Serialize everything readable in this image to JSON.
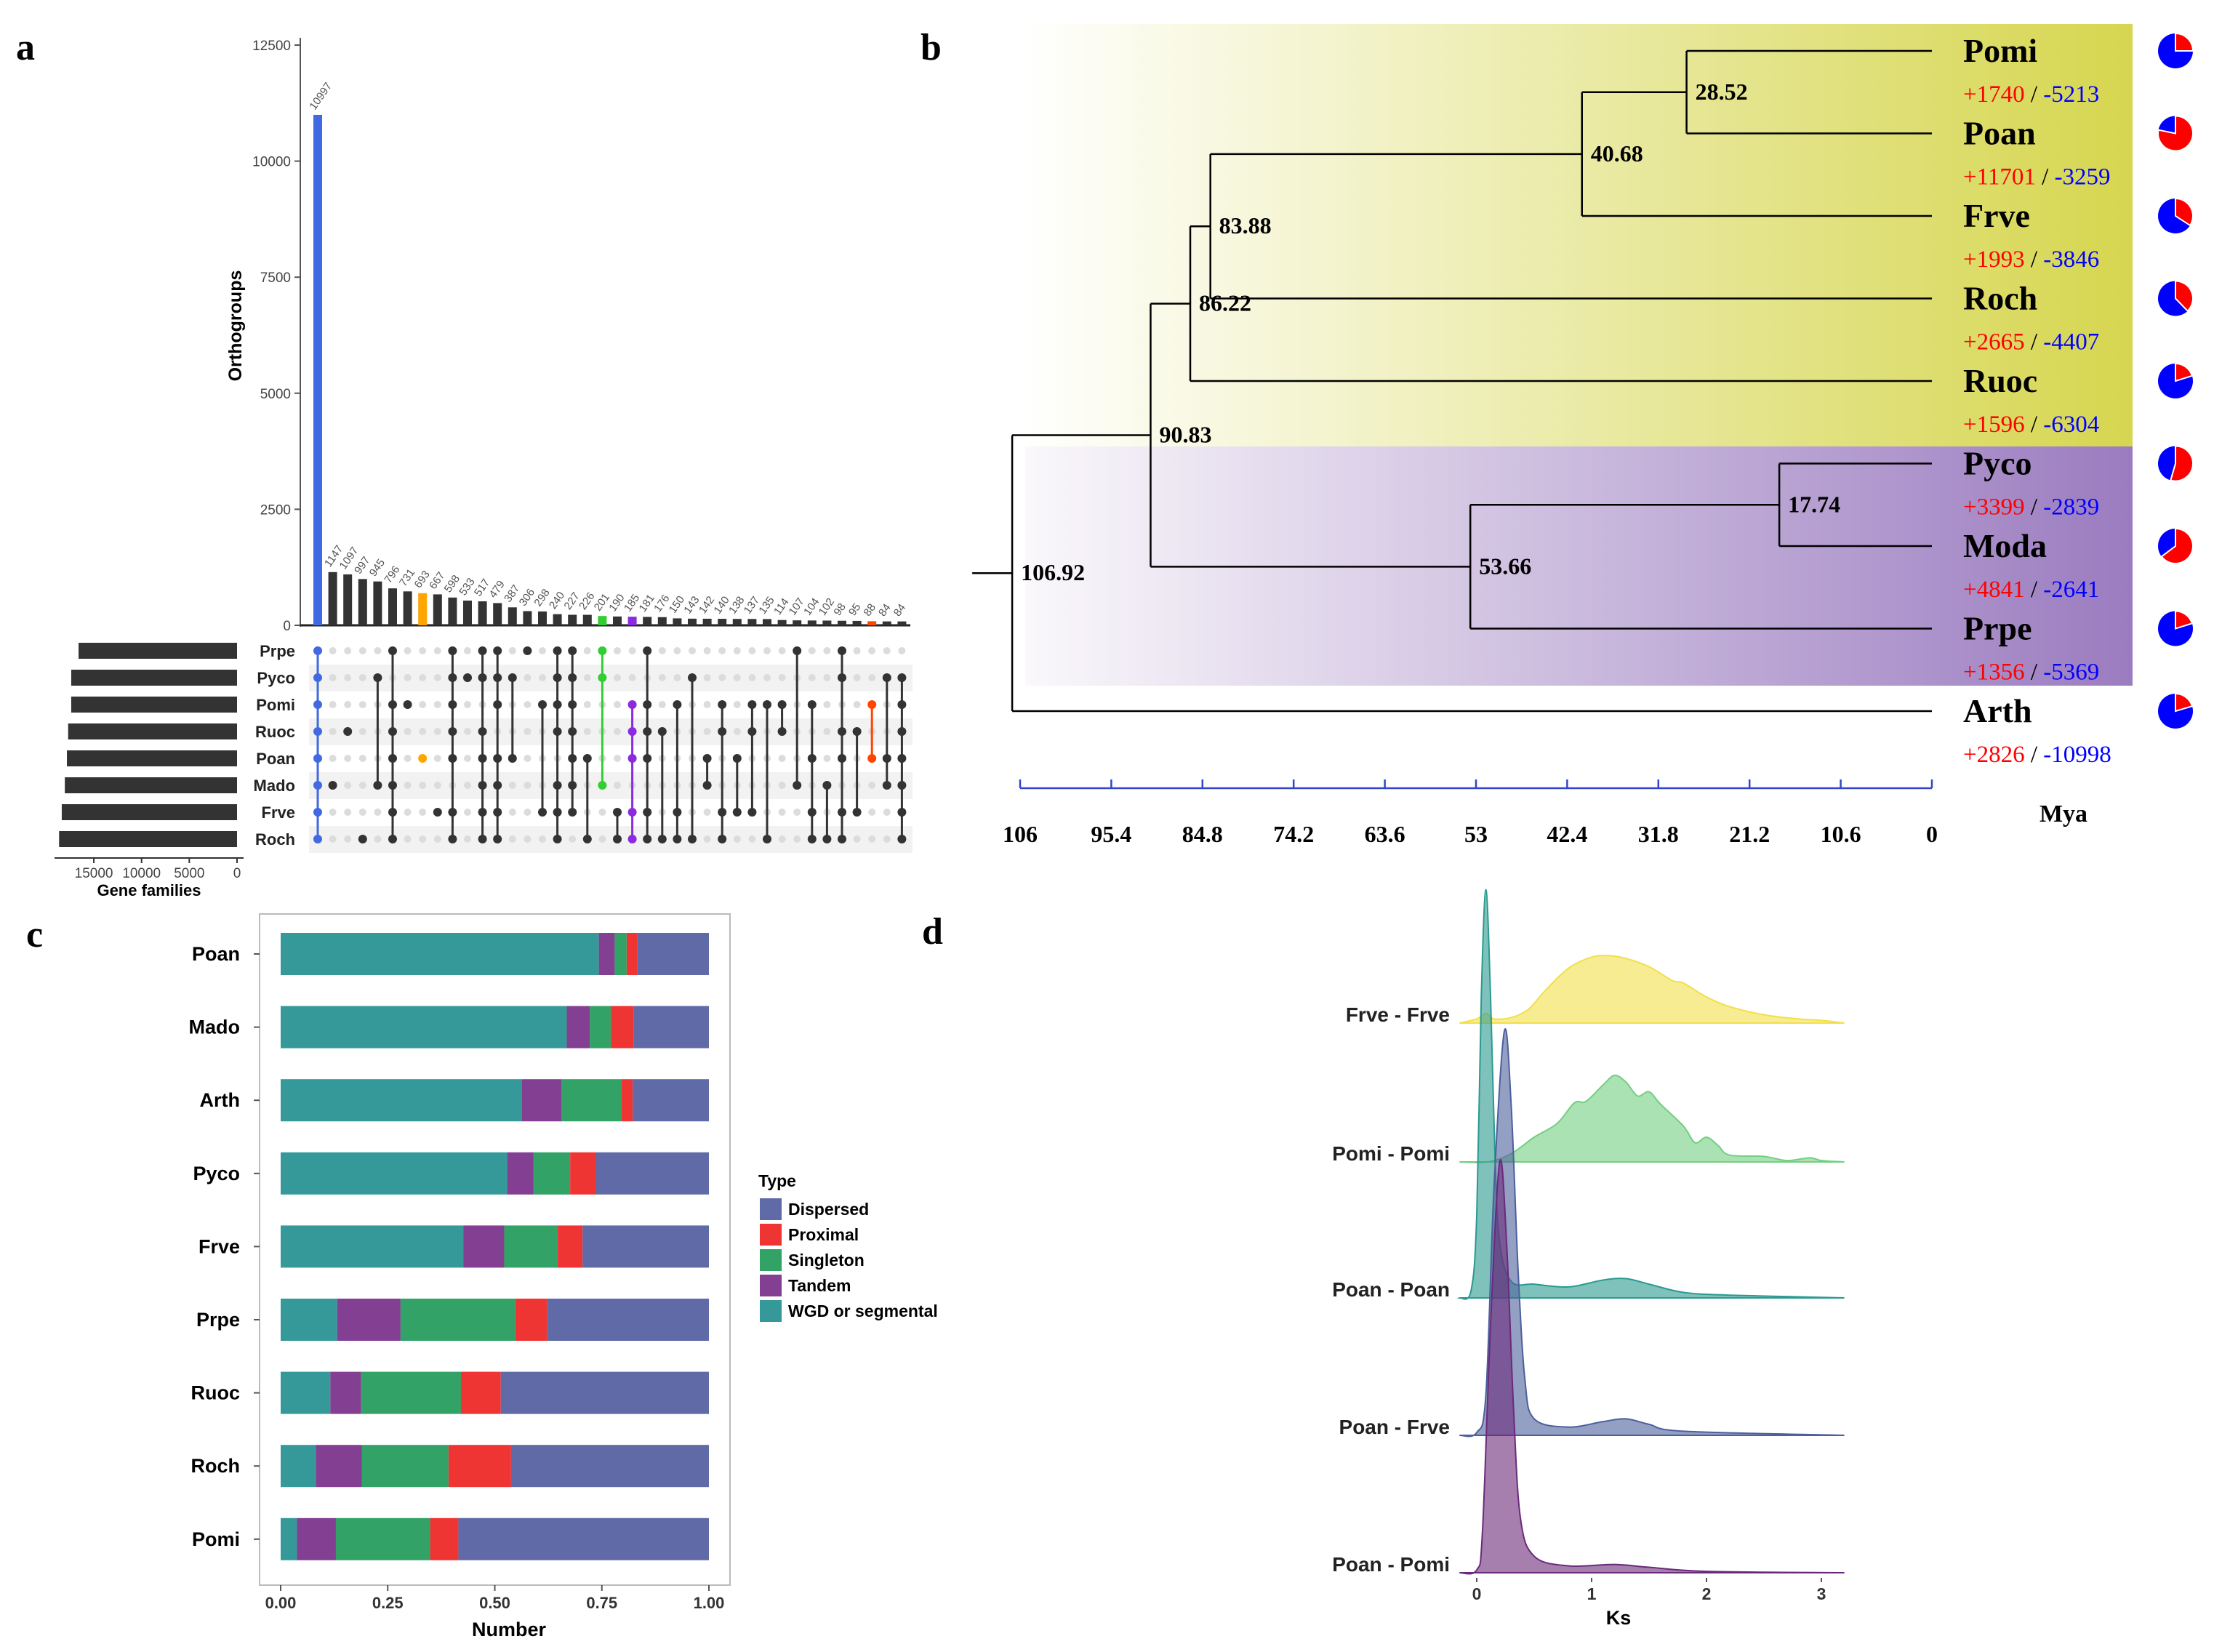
{
  "panel_labels": {
    "a": "a",
    "b": "b",
    "c": "c",
    "d": "d"
  },
  "chart_data": [
    {
      "panel": "a",
      "type": "bar",
      "ylabel": "Orthogroups",
      "ylim": [
        0,
        12500
      ],
      "yticks": [
        0,
        2500,
        5000,
        7500,
        10000,
        12500
      ],
      "values": [
        10997,
        1147,
        1097,
        997,
        945,
        796,
        731,
        693,
        667,
        598,
        533,
        517,
        479,
        387,
        306,
        298,
        240,
        227,
        226,
        201,
        190,
        185,
        181,
        176,
        150,
        143,
        142,
        140,
        138,
        137,
        135,
        114,
        107,
        104,
        102,
        98,
        95,
        88,
        84,
        84
      ],
      "default_color": "#333333",
      "highlights": [
        {
          "index": 0,
          "color": "#4169e1"
        },
        {
          "index": 7,
          "color": "#ffa500"
        },
        {
          "index": 19,
          "color": "#32cd32"
        },
        {
          "index": 21,
          "color": "#8a2be2"
        },
        {
          "index": 37,
          "color": "#ff4500"
        }
      ],
      "sets": [
        "Prpe",
        "Pyco",
        "Pomi",
        "Ruoc",
        "Poan",
        "Mado",
        "Frve",
        "Roch"
      ],
      "set_sizes": [
        16600,
        17370,
        17370,
        17690,
        17820,
        18040,
        18360,
        18640
      ],
      "set_size_xlabel": "Gene families",
      "set_size_ticks": [
        15000,
        10000,
        5000,
        0
      ],
      "intersections": [
        [
          0,
          1,
          2,
          3,
          4,
          5,
          6,
          7
        ],
        [
          5
        ],
        [
          3
        ],
        [
          7
        ],
        [
          1,
          5
        ],
        [
          0,
          2,
          3,
          4,
          5,
          6,
          7
        ],
        [
          2
        ],
        [
          4
        ],
        [
          6
        ],
        [
          0,
          1,
          2,
          3,
          4,
          6,
          7
        ],
        [
          1
        ],
        [
          0,
          1,
          3,
          4,
          5,
          6,
          7
        ],
        [
          0,
          1,
          2,
          4,
          5,
          6,
          7
        ],
        [
          1,
          4
        ],
        [
          0
        ],
        [
          2,
          6
        ],
        [
          0,
          1,
          2,
          3,
          5,
          6,
          7
        ],
        [
          0,
          1,
          2,
          3,
          4,
          5,
          6
        ],
        [
          4,
          7
        ],
        [
          0,
          1,
          5
        ],
        [
          6,
          7
        ],
        [
          2,
          3,
          4,
          6,
          7
        ],
        [
          0,
          2,
          3,
          4,
          6,
          7
        ],
        [
          3,
          7
        ],
        [
          2,
          6,
          7
        ],
        [
          1,
          7
        ],
        [
          4,
          5
        ],
        [
          2,
          3,
          6,
          7
        ],
        [
          4,
          6
        ],
        [
          2,
          3,
          6
        ],
        [
          2,
          7
        ],
        [
          2,
          3
        ],
        [
          0,
          5
        ],
        [
          2,
          4,
          6,
          7
        ],
        [
          5,
          7
        ],
        [
          0,
          1,
          3,
          4,
          6,
          7
        ],
        [
          3,
          6
        ],
        [
          2,
          4
        ],
        [
          1,
          4,
          5
        ],
        [
          1,
          2,
          3,
          4,
          5,
          6,
          7
        ]
      ]
    },
    {
      "panel": "c",
      "type": "bar",
      "orientation": "horizontal-stacked",
      "categories": [
        "Poan",
        "Mado",
        "Arth",
        "Pyco",
        "Frve",
        "Prpe",
        "Ruoc",
        "Roch",
        "Pomi"
      ],
      "series": [
        {
          "name": "WGD or segmental",
          "color": "#35999a",
          "values": [
            0.743,
            0.668,
            0.563,
            0.529,
            0.427,
            0.132,
            0.116,
            0.082,
            0.038
          ]
        },
        {
          "name": "Tandem",
          "color": "#833f92",
          "values": [
            0.037,
            0.054,
            0.093,
            0.061,
            0.095,
            0.148,
            0.072,
            0.108,
            0.091
          ]
        },
        {
          "name": "Singleton",
          "color": "#32a266",
          "values": [
            0.028,
            0.049,
            0.139,
            0.086,
            0.125,
            0.268,
            0.233,
            0.202,
            0.22
          ]
        },
        {
          "name": "Proximal",
          "color": "#ef3434",
          "values": [
            0.025,
            0.053,
            0.027,
            0.06,
            0.058,
            0.074,
            0.093,
            0.146,
            0.066
          ]
        },
        {
          "name": "Dispersed",
          "color": "#5f6aa6",
          "values": [
            0.167,
            0.176,
            0.178,
            0.264,
            0.295,
            0.378,
            0.486,
            0.462,
            0.585
          ]
        }
      ],
      "legend_title": "Type",
      "legend_order": [
        "Dispersed",
        "Proximal",
        "Singleton",
        "Tandem",
        "WGD or segmental"
      ],
      "legend_placement": "right",
      "xlabel": "Number",
      "xlim": [
        0,
        1
      ],
      "xticks": [
        "0.00",
        "0.25",
        "0.50",
        "0.75",
        "1.00"
      ]
    },
    {
      "panel": "d",
      "type": "area",
      "style": "ridgeline",
      "xlabel": "Ks",
      "xlim": [
        -0.15,
        3.2
      ],
      "xticks": [
        "0",
        "1",
        "2",
        "3"
      ],
      "series": [
        {
          "name": "Frve - Frve",
          "color": "#f2df4a",
          "points": [
            [
              -0.15,
              0
            ],
            [
              0,
              0.03
            ],
            [
              0.08,
              0.07
            ],
            [
              0.15,
              0.03
            ],
            [
              0.3,
              0.04
            ],
            [
              0.45,
              0.1
            ],
            [
              0.6,
              0.24
            ],
            [
              0.8,
              0.4
            ],
            [
              1.0,
              0.48
            ],
            [
              1.15,
              0.49
            ],
            [
              1.3,
              0.47
            ],
            [
              1.5,
              0.41
            ],
            [
              1.7,
              0.31
            ],
            [
              1.8,
              0.29
            ],
            [
              2.0,
              0.19
            ],
            [
              2.2,
              0.12
            ],
            [
              2.5,
              0.06
            ],
            [
              2.8,
              0.03
            ],
            [
              3.0,
              0.02
            ],
            [
              3.2,
              0
            ]
          ]
        },
        {
          "name": "Pomi - Pomi",
          "color": "#72cf80",
          "points": [
            [
              -0.15,
              0
            ],
            [
              0.1,
              0
            ],
            [
              0.3,
              0.06
            ],
            [
              0.5,
              0.18
            ],
            [
              0.7,
              0.28
            ],
            [
              0.85,
              0.43
            ],
            [
              0.95,
              0.44
            ],
            [
              1.1,
              0.56
            ],
            [
              1.2,
              0.63
            ],
            [
              1.3,
              0.58
            ],
            [
              1.4,
              0.48
            ],
            [
              1.5,
              0.51
            ],
            [
              1.6,
              0.42
            ],
            [
              1.8,
              0.26
            ],
            [
              1.9,
              0.14
            ],
            [
              2.0,
              0.18
            ],
            [
              2.1,
              0.12
            ],
            [
              2.2,
              0.05
            ],
            [
              2.5,
              0.04
            ],
            [
              2.7,
              0.01
            ],
            [
              2.9,
              0.03
            ],
            [
              3.0,
              0.01
            ],
            [
              3.2,
              0
            ]
          ]
        },
        {
          "name": "Poan - Poan",
          "color": "#2a9a8f",
          "points": [
            [
              -0.15,
              0
            ],
            [
              -0.05,
              0.05
            ],
            [
              0,
              0.6
            ],
            [
              0.04,
              2.2
            ],
            [
              0.08,
              2.97
            ],
            [
              0.12,
              2.2
            ],
            [
              0.16,
              1.0
            ],
            [
              0.2,
              0.4
            ],
            [
              0.3,
              0.12
            ],
            [
              0.5,
              0.1
            ],
            [
              0.8,
              0.08
            ],
            [
              1.1,
              0.13
            ],
            [
              1.3,
              0.14
            ],
            [
              1.5,
              0.1
            ],
            [
              1.8,
              0.04
            ],
            [
              2.2,
              0.02
            ],
            [
              3.2,
              0
            ]
          ]
        },
        {
          "name": "Poan - Frve",
          "color": "#4d5f9c",
          "points": [
            [
              -0.15,
              0
            ],
            [
              0,
              0.02
            ],
            [
              0.08,
              0.3
            ],
            [
              0.15,
              1.8
            ],
            [
              0.24,
              2.94
            ],
            [
              0.3,
              2.4
            ],
            [
              0.36,
              1.2
            ],
            [
              0.42,
              0.4
            ],
            [
              0.5,
              0.12
            ],
            [
              0.8,
              0.06
            ],
            [
              1.1,
              0.1
            ],
            [
              1.3,
              0.12
            ],
            [
              1.5,
              0.08
            ],
            [
              1.8,
              0.03
            ],
            [
              3.2,
              0
            ]
          ]
        },
        {
          "name": "Poan - Pomi",
          "color": "#6a2a7a",
          "points": [
            [
              -0.15,
              0
            ],
            [
              0,
              0.02
            ],
            [
              0.05,
              0.3
            ],
            [
              0.12,
              1.8
            ],
            [
              0.2,
              2.99
            ],
            [
              0.26,
              2.4
            ],
            [
              0.32,
              1.2
            ],
            [
              0.38,
              0.4
            ],
            [
              0.5,
              0.12
            ],
            [
              0.8,
              0.05
            ],
            [
              1.2,
              0.06
            ],
            [
              1.5,
              0.04
            ],
            [
              2.0,
              0.01
            ],
            [
              3.2,
              0
            ]
          ]
        }
      ]
    }
  ],
  "phylogeny": {
    "panel": "b",
    "axis_ticks": [
      "106",
      "95.4",
      "84.8",
      "74.2",
      "63.6",
      "53",
      "42.4",
      "31.8",
      "21.2",
      "10.6",
      "0"
    ],
    "axis_unit": "Mya",
    "axis_range": [
      106,
      0
    ],
    "gain_color": "#ff0000",
    "loss_color": "#0000ff",
    "clade_colors": {
      "upper": "#d6d650",
      "lower": "#9b7cc0"
    },
    "tips": [
      {
        "name": "Pomi",
        "gain": "+1740",
        "loss": "-5213",
        "clade": "upper"
      },
      {
        "name": "Poan",
        "gain": "+11701",
        "loss": "-3259",
        "clade": "upper"
      },
      {
        "name": "Frve",
        "gain": "+1993",
        "loss": "-3846",
        "clade": "upper"
      },
      {
        "name": "Roch",
        "gain": "+2665",
        "loss": "-4407",
        "clade": "upper"
      },
      {
        "name": "Ruoc",
        "gain": "+1596",
        "loss": "-6304",
        "clade": "upper"
      },
      {
        "name": "Pyco",
        "gain": "+3399",
        "loss": "-2839",
        "clade": "lower"
      },
      {
        "name": "Moda",
        "gain": "+4841",
        "loss": "-2641",
        "clade": "lower"
      },
      {
        "name": "Prpe",
        "gain": "+1356",
        "loss": "-5369",
        "clade": "lower"
      },
      {
        "name": "Arth",
        "gain": "+2826",
        "loss": "-10998",
        "clade": "none"
      }
    ],
    "tree": {
      "age": "106.92",
      "children": [
        {
          "age": "90.83",
          "children": [
            {
              "age": "86.22",
              "children": [
                {
                  "age": "83.88",
                  "children": [
                    {
                      "age": "40.68",
                      "children": [
                        {
                          "age": "28.52",
                          "children": [
                            "Pomi",
                            "Poan"
                          ]
                        },
                        "Frve"
                      ]
                    },
                    "Roch"
                  ]
                },
                "Ruoc"
              ]
            },
            {
              "age": "53.66",
              "children": [
                {
                  "age": "17.74",
                  "children": [
                    "Pyco",
                    "Moda"
                  ]
                },
                "Prpe"
              ]
            }
          ]
        },
        "Arth"
      ]
    }
  }
}
